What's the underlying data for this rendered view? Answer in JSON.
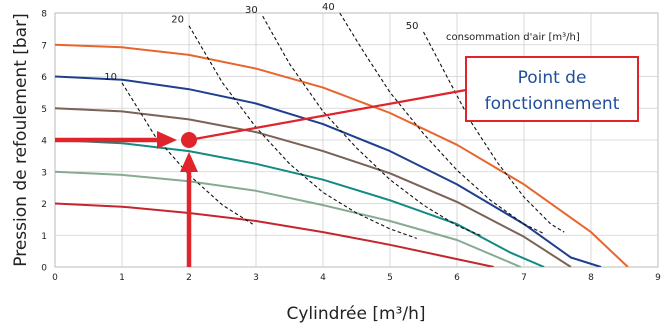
{
  "chart_data": {
    "type": "line",
    "xlabel": "Cylindrée [m³/h]",
    "ylabel": "Pression de refoulement [bar]",
    "xlim": [
      0,
      9
    ],
    "ylim": [
      0,
      8
    ],
    "x_ticks": [
      "0",
      "1",
      "2",
      "3",
      "4",
      "5",
      "6",
      "7",
      "8",
      "9"
    ],
    "y_ticks": [
      "0",
      "1",
      "2",
      "3",
      "4",
      "5",
      "6",
      "7",
      "8"
    ],
    "grid": true,
    "pump_curves": [
      {
        "color": "#e8652c",
        "points": [
          [
            0,
            7.0
          ],
          [
            1,
            6.92
          ],
          [
            2,
            6.68
          ],
          [
            3,
            6.25
          ],
          [
            4,
            5.65
          ],
          [
            5,
            4.85
          ],
          [
            6,
            3.85
          ],
          [
            7,
            2.6
          ],
          [
            8,
            1.1
          ],
          [
            8.55,
            0
          ]
        ]
      },
      {
        "color": "#1f3f8f",
        "points": [
          [
            0,
            6.0
          ],
          [
            1,
            5.9
          ],
          [
            2,
            5.6
          ],
          [
            3,
            5.15
          ],
          [
            4,
            4.5
          ],
          [
            5,
            3.65
          ],
          [
            6,
            2.6
          ],
          [
            7,
            1.35
          ],
          [
            7.7,
            0.3
          ],
          [
            8.15,
            0
          ]
        ]
      },
      {
        "color": "#7a6257",
        "points": [
          [
            0,
            5.0
          ],
          [
            1,
            4.9
          ],
          [
            2,
            4.65
          ],
          [
            3,
            4.25
          ],
          [
            4,
            3.65
          ],
          [
            5,
            2.95
          ],
          [
            6,
            2.05
          ],
          [
            7,
            0.95
          ],
          [
            7.7,
            0
          ]
        ]
      },
      {
        "color": "#138a82",
        "points": [
          [
            0,
            4.0
          ],
          [
            1,
            3.9
          ],
          [
            2,
            3.65
          ],
          [
            3,
            3.25
          ],
          [
            4,
            2.75
          ],
          [
            5,
            2.1
          ],
          [
            6,
            1.35
          ],
          [
            6.8,
            0.45
          ],
          [
            7.3,
            0
          ]
        ]
      },
      {
        "color": "#86ab93",
        "points": [
          [
            0,
            3.0
          ],
          [
            1,
            2.9
          ],
          [
            2,
            2.7
          ],
          [
            3,
            2.4
          ],
          [
            4,
            1.95
          ],
          [
            5,
            1.45
          ],
          [
            6,
            0.85
          ],
          [
            6.95,
            0
          ]
        ]
      },
      {
        "color": "#c4262e",
        "points": [
          [
            0,
            2.0
          ],
          [
            1,
            1.9
          ],
          [
            2,
            1.7
          ],
          [
            3,
            1.45
          ],
          [
            4,
            1.1
          ],
          [
            5,
            0.7
          ],
          [
            6,
            0.25
          ],
          [
            6.55,
            0
          ]
        ]
      }
    ],
    "air_consumption": {
      "title": "consommation d'air [m³/h]",
      "curves": [
        {
          "label": "10",
          "points": [
            [
              1.0,
              5.8
            ],
            [
              1.5,
              4.1
            ],
            [
              2.0,
              2.9
            ],
            [
              2.5,
              1.95
            ],
            [
              2.95,
              1.35
            ]
          ]
        },
        {
          "label": "20",
          "points": [
            [
              2.0,
              7.6
            ],
            [
              2.5,
              5.8
            ],
            [
              3.0,
              4.4
            ],
            [
              3.5,
              3.25
            ],
            [
              4.0,
              2.35
            ],
            [
              4.5,
              1.7
            ],
            [
              5.0,
              1.2
            ],
            [
              5.4,
              0.9
            ]
          ]
        },
        {
          "label": "30",
          "points": [
            [
              3.1,
              7.9
            ],
            [
              3.5,
              6.4
            ],
            [
              4.0,
              4.9
            ],
            [
              4.5,
              3.75
            ],
            [
              5.0,
              2.75
            ],
            [
              5.5,
              1.95
            ],
            [
              6.0,
              1.3
            ],
            [
              6.35,
              1.0
            ]
          ]
        },
        {
          "label": "40",
          "points": [
            [
              4.25,
              8.0
            ],
            [
              4.6,
              6.8
            ],
            [
              5.0,
              5.5
            ],
            [
              5.5,
              4.2
            ],
            [
              6.0,
              3.05
            ],
            [
              6.5,
              2.1
            ],
            [
              7.0,
              1.35
            ],
            [
              7.3,
              1.05
            ]
          ]
        },
        {
          "label": "50",
          "points": [
            [
              5.5,
              7.4
            ],
            [
              5.8,
              6.2
            ],
            [
              6.2,
              4.6
            ],
            [
              6.6,
              3.3
            ],
            [
              7.0,
              2.2
            ],
            [
              7.4,
              1.35
            ],
            [
              7.6,
              1.1
            ]
          ]
        }
      ]
    },
    "operating_point": {
      "x": 2.0,
      "y": 4.0
    },
    "annotation": {
      "line1": "Point de",
      "line2": "fonctionnement"
    }
  }
}
